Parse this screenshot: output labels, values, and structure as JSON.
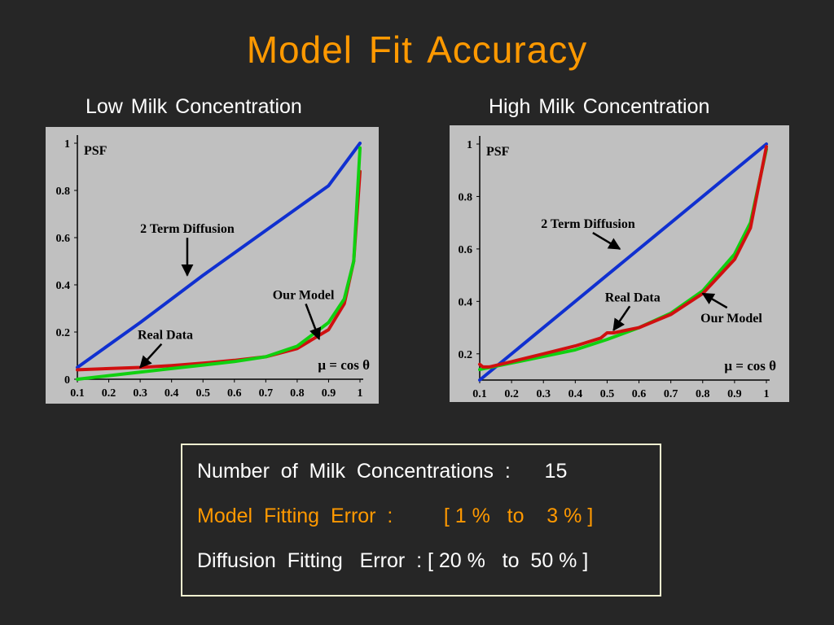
{
  "title": "Model  Fit  Accuracy",
  "colors": {
    "title": "#ff9900",
    "accent": "#ff9900",
    "blue": "#1030d0",
    "red": "#d01010",
    "green": "#10d010"
  },
  "chart_data": [
    {
      "type": "line",
      "title": "Low  Milk  Concentration",
      "ylabel": "PSF",
      "xlabel": "μ = cos θ",
      "xlim": [
        0.1,
        1.0
      ],
      "ylim": [
        0,
        1.0
      ],
      "xticks": [
        0.1,
        0.2,
        0.3,
        0.4,
        0.5,
        0.6,
        0.7,
        0.8,
        0.9,
        1
      ],
      "xtick_labels": [
        "0.1",
        "0.2",
        "0.3",
        "0.4",
        "0.5",
        "0.6",
        "0.7",
        "0.8",
        "0.9",
        "1"
      ],
      "yticks": [
        0,
        0.2,
        0.4,
        0.6,
        0.8,
        1
      ],
      "ytick_labels": [
        "0",
        "0.2",
        "0.4",
        "0.6",
        "0.8",
        "1"
      ],
      "series": [
        {
          "color": "#1030d0",
          "x": [
            0.1,
            0.3,
            0.5,
            0.7,
            0.9,
            1.0
          ],
          "y": [
            0.05,
            0.24,
            0.44,
            0.63,
            0.82,
            1.0
          ]
        },
        {
          "color": "#d01010",
          "x": [
            0.1,
            0.2,
            0.3,
            0.4,
            0.5,
            0.6,
            0.7,
            0.8,
            0.9,
            0.95,
            0.98,
            1.0
          ],
          "y": [
            0.04,
            0.045,
            0.05,
            0.058,
            0.068,
            0.08,
            0.095,
            0.13,
            0.21,
            0.32,
            0.5,
            0.88
          ]
        },
        {
          "color": "#10d010",
          "x": [
            0.1,
            0.2,
            0.3,
            0.4,
            0.5,
            0.6,
            0.7,
            0.8,
            0.9,
            0.95,
            0.98,
            1.0
          ],
          "y": [
            0.0,
            0.015,
            0.03,
            0.045,
            0.06,
            0.075,
            0.095,
            0.14,
            0.24,
            0.34,
            0.5,
            0.98
          ]
        }
      ],
      "annotations": [
        {
          "text": "2 Term Diffusion",
          "x": 0.45,
          "y": 0.62,
          "arrow_to": [
            0.45,
            0.44
          ]
        },
        {
          "text": "Our Model",
          "x": 0.82,
          "y": 0.34,
          "arrow_to": [
            0.87,
            0.17
          ]
        },
        {
          "text": "Real Data",
          "x": 0.38,
          "y": 0.17,
          "arrow_to": [
            0.3,
            0.05
          ]
        }
      ]
    },
    {
      "type": "line",
      "title": "High  Milk  Concentration",
      "ylabel": "PSF",
      "xlabel": "μ = cos θ",
      "xlim": [
        0.1,
        1.0
      ],
      "ylim": [
        0.1,
        1.0
      ],
      "xticks": [
        0.1,
        0.2,
        0.3,
        0.4,
        0.5,
        0.6,
        0.7,
        0.8,
        0.9,
        1
      ],
      "xtick_labels": [
        "0.1",
        "0.2",
        "0.3",
        "0.4",
        "0.5",
        "0.6",
        "0.7",
        "0.8",
        "0.9",
        "1"
      ],
      "yticks": [
        0.2,
        0.4,
        0.6,
        0.8,
        1
      ],
      "ytick_labels": [
        "0.2",
        "0.4",
        "0.6",
        "0.8",
        "1"
      ],
      "series": [
        {
          "color": "#1030d0",
          "x": [
            0.1,
            0.3,
            0.5,
            0.7,
            0.9,
            1.0
          ],
          "y": [
            0.1,
            0.3,
            0.5,
            0.7,
            0.9,
            1.0
          ]
        },
        {
          "color": "#10d010",
          "x": [
            0.1,
            0.2,
            0.3,
            0.4,
            0.5,
            0.6,
            0.7,
            0.8,
            0.9,
            0.95,
            1.0
          ],
          "y": [
            0.14,
            0.165,
            0.19,
            0.215,
            0.255,
            0.3,
            0.355,
            0.44,
            0.58,
            0.7,
            0.98
          ]
        },
        {
          "color": "#d01010",
          "x": [
            0.1,
            0.11,
            0.13,
            0.2,
            0.3,
            0.4,
            0.48,
            0.5,
            0.52,
            0.6,
            0.7,
            0.8,
            0.9,
            0.95,
            1.0
          ],
          "y": [
            0.16,
            0.15,
            0.15,
            0.17,
            0.2,
            0.23,
            0.26,
            0.28,
            0.28,
            0.3,
            0.35,
            0.43,
            0.56,
            0.68,
            0.99
          ]
        }
      ],
      "annotations": [
        {
          "text": "2 Term Diffusion",
          "x": 0.44,
          "y": 0.68,
          "arrow_to": [
            0.54,
            0.6
          ]
        },
        {
          "text": "Real Data",
          "x": 0.58,
          "y": 0.4,
          "arrow_to": [
            0.52,
            0.29
          ]
        },
        {
          "text": "Our Model",
          "x": 0.89,
          "y": 0.32,
          "arrow_to": [
            0.8,
            0.43
          ]
        }
      ]
    }
  ],
  "summary": {
    "line1": "Number  of  Milk  Concentrations  :      15",
    "line2": "Model  Fitting  Error  :         [ 1 %   to    3 % ]",
    "line3": "Diffusion  Fitting   Error  : [ 20 %   to  50 % ]"
  }
}
